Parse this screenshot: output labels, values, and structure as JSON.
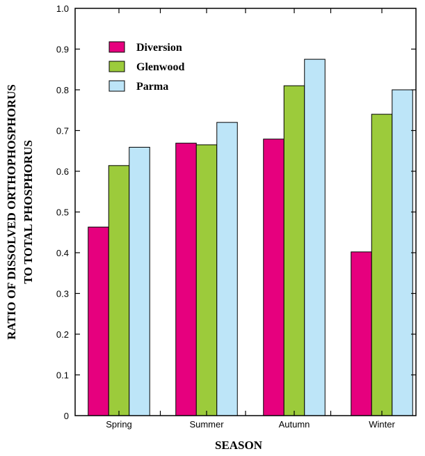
{
  "chart_data": {
    "type": "bar",
    "xlabel": "SEASON",
    "ylabel_line1": "RATIO OF DISSOLVED ORTHOPHOSPHORUS",
    "ylabel_line2": "TO TOTAL PHOSPHORUS",
    "categories": [
      "Spring",
      "Summer",
      "Autumn",
      "Winter"
    ],
    "ylim": [
      0,
      1.0
    ],
    "yticks": [
      {
        "value": 0,
        "label": "0"
      },
      {
        "value": 0.1,
        "label": "0.1"
      },
      {
        "value": 0.2,
        "label": "0.2"
      },
      {
        "value": 0.3,
        "label": "0.3"
      },
      {
        "value": 0.4,
        "label": "0.4"
      },
      {
        "value": 0.5,
        "label": "0.5"
      },
      {
        "value": 0.6,
        "label": "0.6"
      },
      {
        "value": 0.7,
        "label": "0.7"
      },
      {
        "value": 0.8,
        "label": "0.8"
      },
      {
        "value": 0.9,
        "label": "0.9"
      },
      {
        "value": 1.0,
        "label": "1.0"
      }
    ],
    "series": [
      {
        "name": "Diversion",
        "color": "#e6007e",
        "values": [
          0.463,
          0.669,
          0.679,
          0.402
        ]
      },
      {
        "name": "Glenwood",
        "color": "#9ccb3b",
        "values": [
          0.614,
          0.665,
          0.81,
          0.74
        ]
      },
      {
        "name": "Parma",
        "color": "#bde5f8",
        "values": [
          0.659,
          0.72,
          0.875,
          0.8
        ]
      }
    ],
    "legend": "top-left",
    "grid": false
  }
}
